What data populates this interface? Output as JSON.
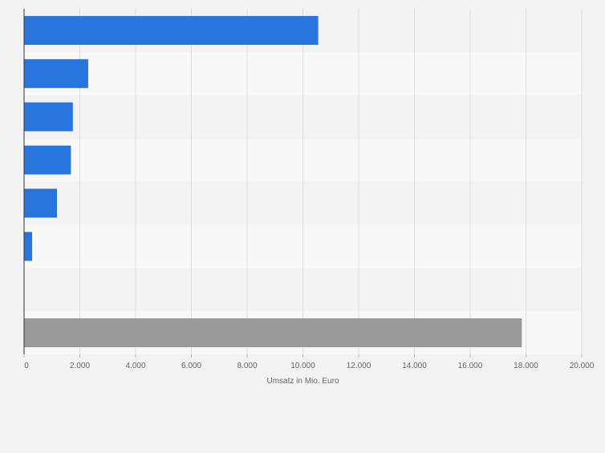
{
  "chart_data": {
    "type": "bar",
    "orientation": "horizontal",
    "categories": [
      "",
      "",
      "",
      "",
      "",
      "",
      "",
      ""
    ],
    "values": [
      10550,
      2300,
      1750,
      1680,
      1180,
      290,
      0,
      17850
    ],
    "bar_colors": [
      "#2876dd",
      "#2876dd",
      "#2876dd",
      "#2876dd",
      "#2876dd",
      "#2876dd",
      "#2876dd",
      "#999999"
    ],
    "xlim": [
      0,
      20000
    ],
    "xticks": [
      0,
      2000,
      4000,
      6000,
      8000,
      10000,
      12000,
      14000,
      16000,
      18000,
      20000
    ],
    "xtick_labels": [
      "0",
      "2.000",
      "4.000",
      "6.000",
      "8.000",
      "10.000",
      "12.000",
      "14.000",
      "16.000",
      "18.000",
      "20.000"
    ],
    "xlabel": "Umsatz in Mio. Euro",
    "title": "",
    "grid": true,
    "legend": "none"
  },
  "colors": {
    "primary_bar": "#2876dd",
    "total_bar": "#999999",
    "background": "#f3f3f3",
    "band_light": "#f8f8f8",
    "gridline": "#dedede",
    "axis": "#333333",
    "text": "#666666"
  }
}
